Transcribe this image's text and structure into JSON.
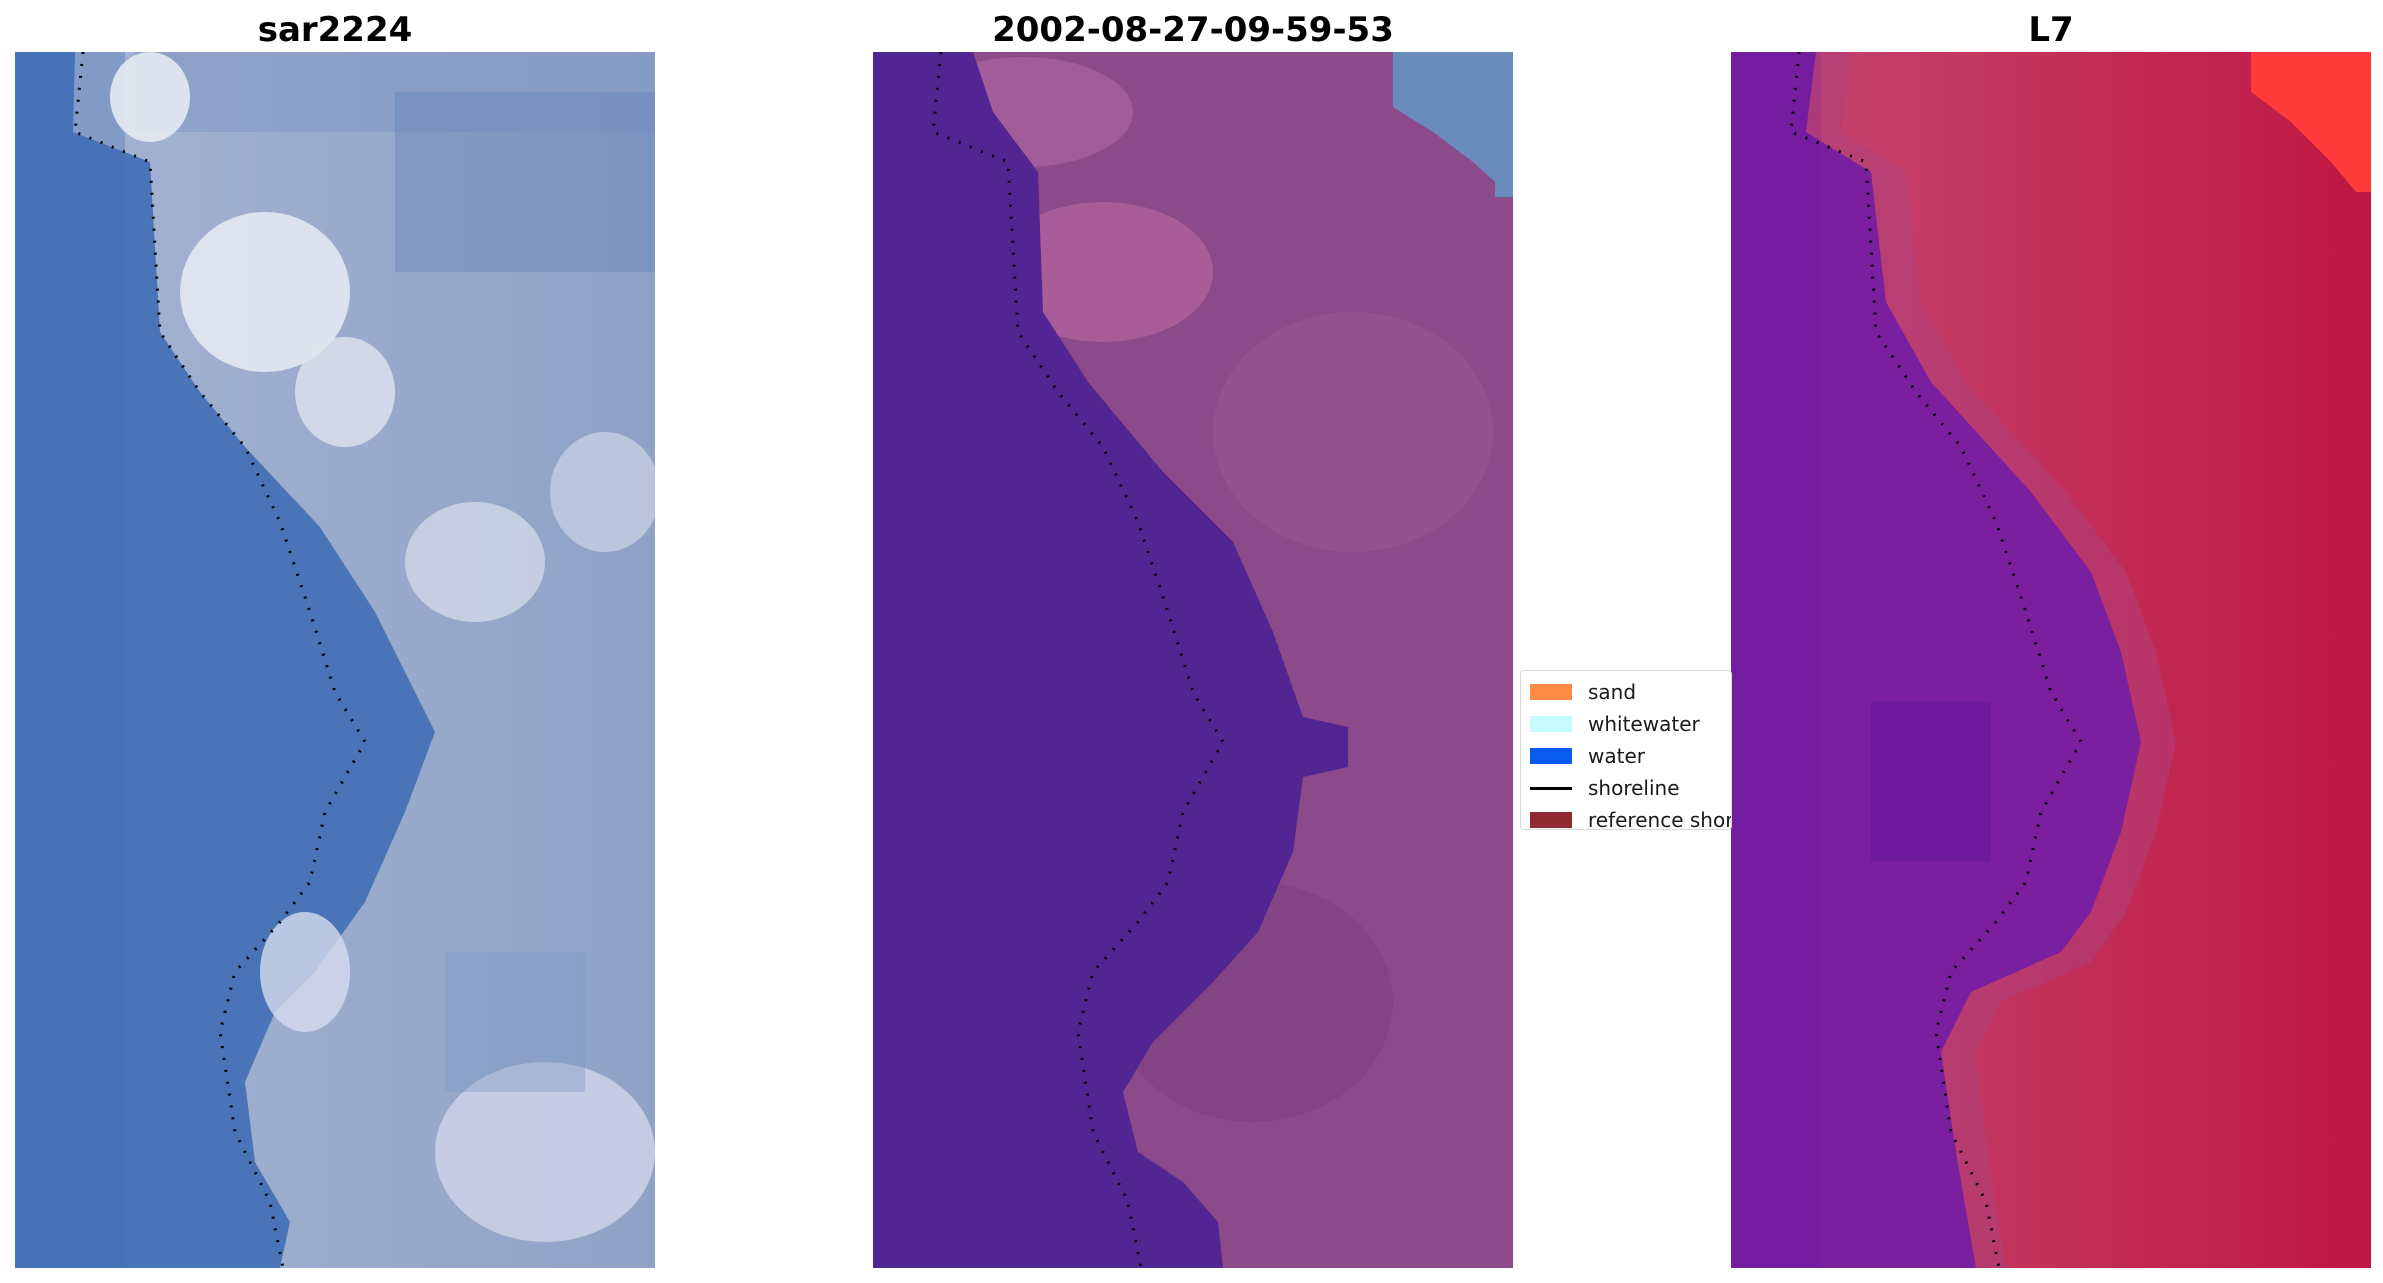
{
  "panels": [
    {
      "title": "sar2224"
    },
    {
      "title": "2002-08-27-09-59-53"
    },
    {
      "title": "L7"
    }
  ],
  "legend": {
    "items": [
      {
        "label": "sand",
        "color": "#ff8c42",
        "kind": "patch"
      },
      {
        "label": "whitewater",
        "color": "#c8fcfc",
        "kind": "patch"
      },
      {
        "label": "water",
        "color": "#0a5cf0",
        "kind": "patch"
      },
      {
        "label": "shoreline",
        "color": "#000000",
        "kind": "line"
      },
      {
        "label": "reference shoreline",
        "color": "#8f2a33",
        "kind": "patch"
      }
    ]
  },
  "colors": {
    "rgb_water": "#4a74b8",
    "rgb_land": "#98a8c8",
    "rgb_white": "#e6eaf2",
    "class_water": "#512592",
    "class_land": "#8c4a8a",
    "class_sand_light": "#b2649c",
    "class_sea_blue": "#6a8cbc",
    "ndwi_water": "#7a1fa0",
    "ndwi_land": "#c42a55",
    "ndwi_hot": "#ff3a3a",
    "shoreline": "#000000"
  }
}
